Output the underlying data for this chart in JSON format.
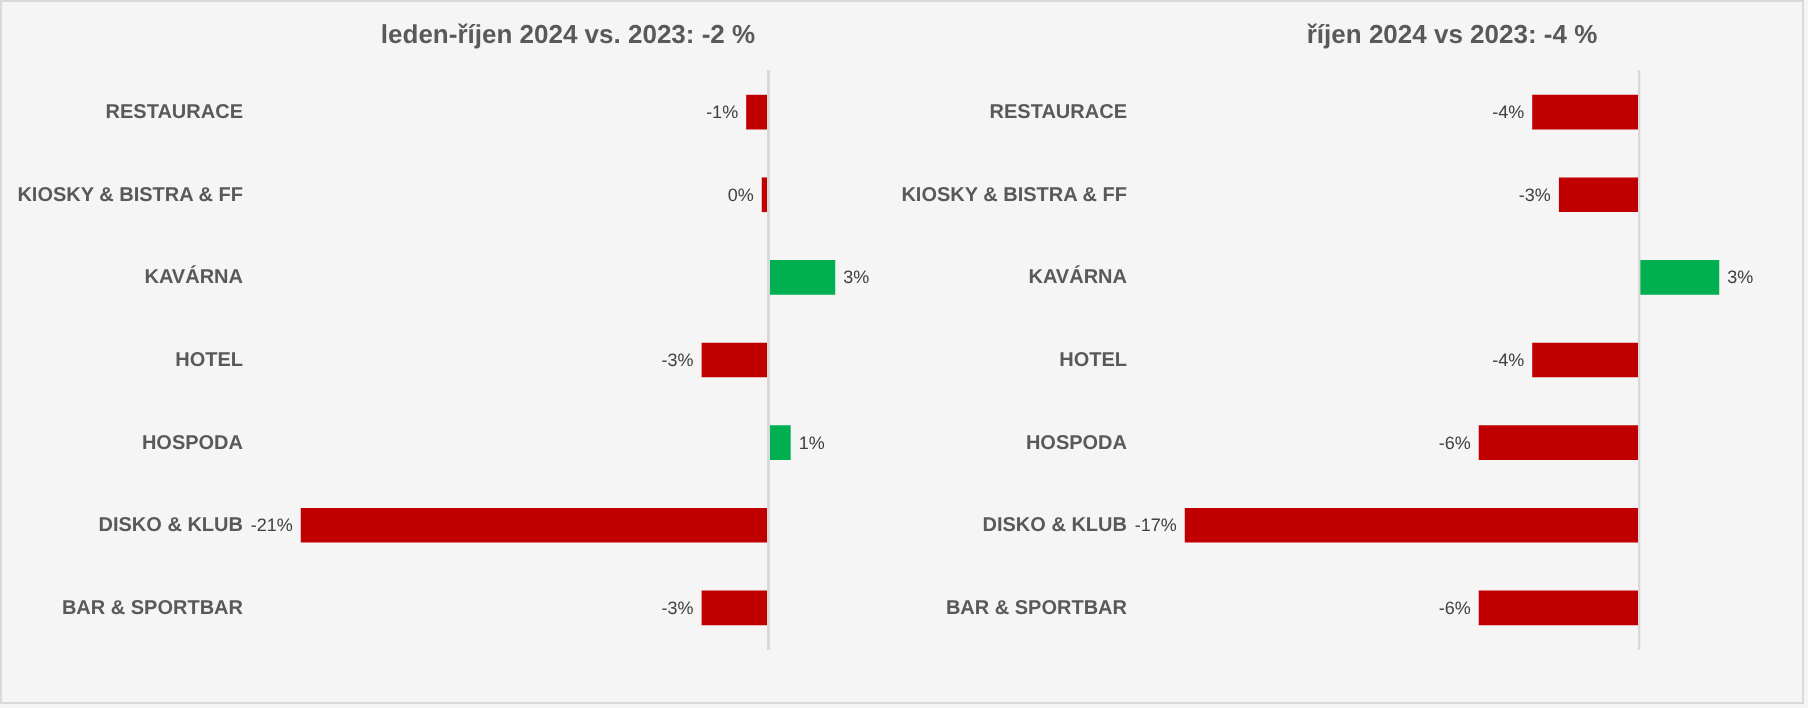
{
  "chart_data": [
    {
      "type": "bar",
      "orientation": "horizontal",
      "title": "leden-říjen 2024 vs. 2023: -2 %",
      "categories": [
        "RESTAURACE",
        "KIOSKY & BISTRA & FF",
        "KAVÁRNA",
        "HOTEL",
        "HOSPODA",
        "DISKO & KLUB",
        "BAR & SPORTBAR"
      ],
      "values": [
        -1,
        -0.3,
        3,
        -3,
        1,
        -21,
        -3
      ],
      "value_labels": [
        "-1%",
        "0%",
        "3%",
        "-3%",
        "1%",
        "-21%",
        "-3%"
      ],
      "colors": [
        "#c00000",
        "#c00000",
        "#00b050",
        "#c00000",
        "#00b050",
        "#c00000",
        "#c00000"
      ],
      "ref_lines": [
        {
          "axis": "x",
          "value": 0,
          "color": "#d9d9d9"
        }
      ]
    },
    {
      "type": "bar",
      "orientation": "horizontal",
      "title": "říjen 2024 vs 2023: -4 %",
      "categories": [
        "RESTAURACE",
        "KIOSKY & BISTRA & FF",
        "KAVÁRNA",
        "HOTEL",
        "HOSPODA",
        "DISKO & KLUB",
        "BAR & SPORTBAR"
      ],
      "values": [
        -4,
        -3,
        3,
        -4,
        -6,
        -17,
        -6
      ],
      "value_labels": [
        "-4%",
        "-3%",
        "3%",
        "-4%",
        "-6%",
        "-17%",
        "-6%"
      ],
      "colors": [
        "#c00000",
        "#c00000",
        "#00b050",
        "#c00000",
        "#c00000",
        "#c00000",
        "#c00000"
      ],
      "ref_lines": [
        {
          "axis": "x",
          "value": 0,
          "color": "#d9d9d9"
        }
      ]
    }
  ]
}
